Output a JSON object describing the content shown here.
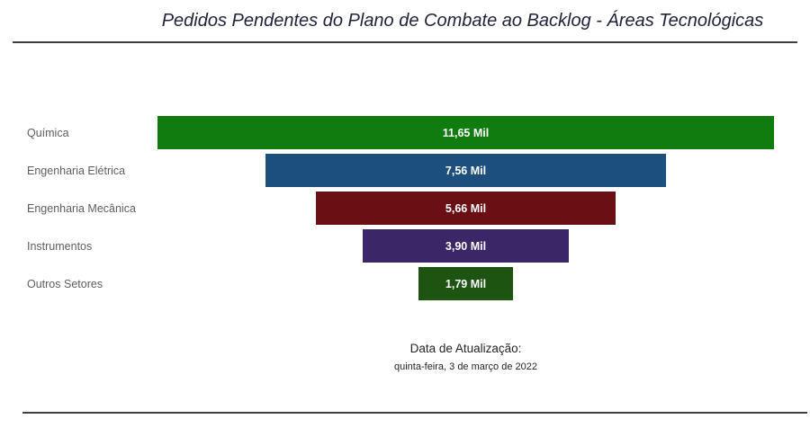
{
  "title": "Pedidos Pendentes do Plano de Combate ao Backlog - Áreas Tecnológicas",
  "footer": {
    "label": "Data de Atualização:",
    "date": "quinta-feira, 3 de março de 2022"
  },
  "chart_data": {
    "type": "funnel",
    "orientation": "horizontal-centered",
    "categories": [
      "Química",
      "Engenharia Elétrica",
      "Engenharia Mecânica",
      "Instrumentos",
      "Outros Setores"
    ],
    "values": [
      11.65,
      7.56,
      5.66,
      3.9,
      1.79
    ],
    "value_labels": [
      "11,65 Mil",
      "7,56 Mil",
      "5,66 Mil",
      "3,90 Mil",
      "1,79 Mil"
    ],
    "unit": "Mil",
    "colors": [
      "#107C10",
      "#1D4F7C",
      "#6A1014",
      "#3B2667",
      "#1D5412"
    ],
    "xlim": [
      0,
      11.65
    ],
    "title": "Pedidos Pendentes do Plano de Combate ao Backlog - Áreas Tecnológicas",
    "category_label_color": "#605e5c",
    "value_label_color": "#ffffff"
  }
}
